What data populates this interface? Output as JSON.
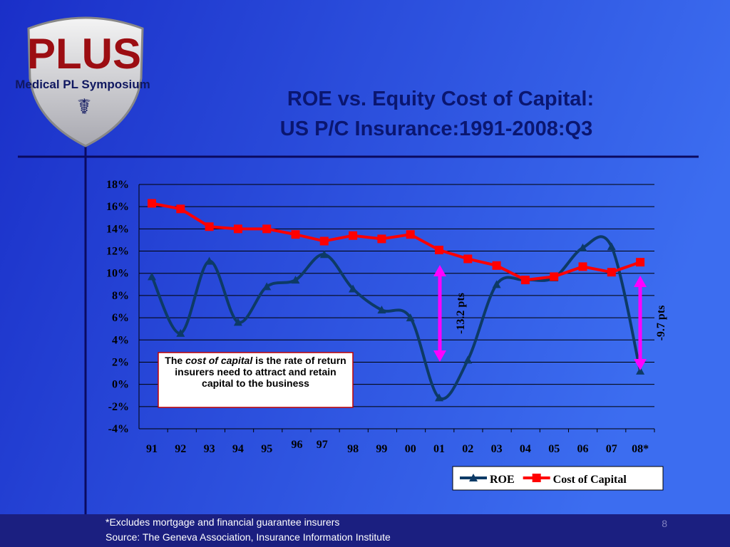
{
  "logo": {
    "title": "PLUS",
    "subtitle": "Medical PL Symposium"
  },
  "chart_data": {
    "type": "line",
    "title": [
      "ROE vs. Equity Cost of Capital:",
      "US P/C Insurance:1991-2008:Q3"
    ],
    "categories": [
      "91",
      "92",
      "93",
      "94",
      "95",
      "96",
      "97",
      "98",
      "99",
      "00",
      "01",
      "02",
      "03",
      "04",
      "05",
      "06",
      "07",
      "08*"
    ],
    "series": [
      {
        "name": "ROE",
        "color": "#0d3a66",
        "marker": "triangle",
        "smooth": true,
        "values": [
          9.7,
          4.6,
          11.1,
          5.6,
          8.8,
          9.4,
          11.7,
          8.6,
          6.7,
          6.0,
          -1.2,
          2.2,
          9.0,
          9.4,
          9.6,
          12.3,
          12.4,
          1.2
        ]
      },
      {
        "name": "Cost of Capital",
        "color": "#ff0000",
        "marker": "square",
        "smooth": false,
        "values": [
          16.3,
          15.8,
          14.2,
          14.0,
          14.0,
          13.5,
          12.9,
          13.4,
          13.1,
          13.5,
          12.1,
          11.3,
          10.7,
          9.4,
          9.7,
          10.6,
          10.1,
          11.0
        ]
      }
    ],
    "ylim": [
      -4,
      18
    ],
    "yticks": [
      {
        "value": -4,
        "label": "-4%"
      },
      {
        "value": -2,
        "label": "-2%"
      },
      {
        "value": 0,
        "label": "0%"
      },
      {
        "value": 2,
        "label": "2%"
      },
      {
        "value": 4,
        "label": "4%"
      },
      {
        "value": 6,
        "label": "6%"
      },
      {
        "value": 8,
        "label": "8%"
      },
      {
        "value": 10,
        "label": "10%"
      },
      {
        "value": 12,
        "label": "12%"
      },
      {
        "value": 14,
        "label": "14%"
      },
      {
        "value": 16,
        "label": "16%"
      },
      {
        "value": 18,
        "label": "18%"
      }
    ],
    "grid": true,
    "legend": "bottom-right",
    "annotations": [
      "-13.2 pts",
      "-9.7 pts"
    ],
    "note": {
      "prefix": "The ",
      "emphasis": "cost of capital",
      "suffix": " is the rate of return insurers need to attract and retain capital to the business"
    }
  },
  "footnote": "*Excludes mortgage and financial guarantee insurers",
  "source": "Source:  The Geneva Association, Insurance Information Institute",
  "page_number": "8"
}
